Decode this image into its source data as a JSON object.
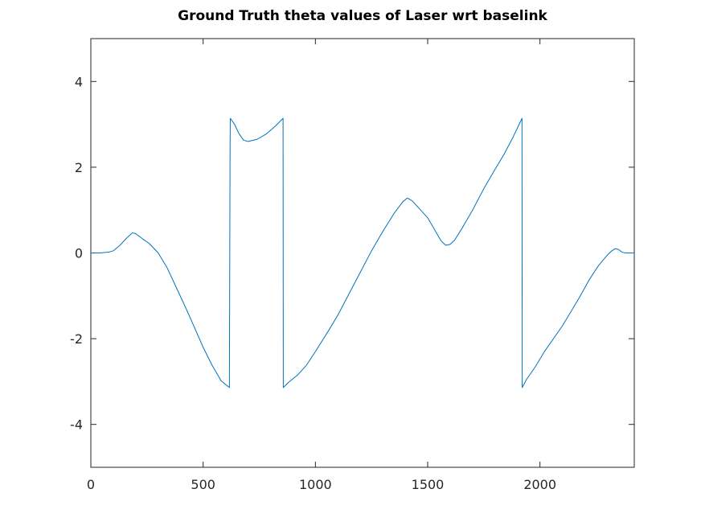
{
  "chart_data": {
    "type": "line",
    "title": "Ground Truth theta values of Laser wrt baselink",
    "xlabel": "",
    "ylabel": "",
    "xlim": [
      0,
      2420
    ],
    "ylim": [
      -5,
      5
    ],
    "x_ticks": [
      0,
      500,
      1000,
      1500,
      2000
    ],
    "y_ticks": [
      -4,
      -2,
      0,
      2,
      4
    ],
    "x_tick_labels": [
      "0",
      "500",
      "1000",
      "1500",
      "2000"
    ],
    "y_tick_labels": [
      "-4",
      "-2",
      "0",
      "2",
      "4"
    ],
    "grid": false,
    "box": true,
    "series": [
      {
        "color": "#0072bd",
        "points": [
          [
            0,
            0.0
          ],
          [
            40,
            0.0
          ],
          [
            80,
            0.02
          ],
          [
            100,
            0.05
          ],
          [
            130,
            0.18
          ],
          [
            160,
            0.35
          ],
          [
            185,
            0.47
          ],
          [
            200,
            0.45
          ],
          [
            230,
            0.33
          ],
          [
            260,
            0.22
          ],
          [
            300,
            0.0
          ],
          [
            340,
            -0.35
          ],
          [
            380,
            -0.8
          ],
          [
            420,
            -1.25
          ],
          [
            460,
            -1.72
          ],
          [
            500,
            -2.2
          ],
          [
            540,
            -2.62
          ],
          [
            580,
            -2.98
          ],
          [
            617,
            -3.14
          ],
          [
            620,
            2.45
          ],
          [
            621,
            3.14
          ],
          [
            640,
            3.0
          ],
          [
            660,
            2.78
          ],
          [
            680,
            2.63
          ],
          [
            700,
            2.6
          ],
          [
            740,
            2.65
          ],
          [
            780,
            2.77
          ],
          [
            820,
            2.95
          ],
          [
            856,
            3.14
          ],
          [
            857,
            -3.14
          ],
          [
            880,
            -3.02
          ],
          [
            920,
            -2.85
          ],
          [
            960,
            -2.62
          ],
          [
            1000,
            -2.3
          ],
          [
            1060,
            -1.8
          ],
          [
            1100,
            -1.45
          ],
          [
            1150,
            -0.95
          ],
          [
            1200,
            -0.45
          ],
          [
            1250,
            0.05
          ],
          [
            1300,
            0.5
          ],
          [
            1350,
            0.92
          ],
          [
            1390,
            1.2
          ],
          [
            1410,
            1.28
          ],
          [
            1430,
            1.22
          ],
          [
            1460,
            1.05
          ],
          [
            1500,
            0.82
          ],
          [
            1530,
            0.55
          ],
          [
            1560,
            0.28
          ],
          [
            1580,
            0.18
          ],
          [
            1600,
            0.2
          ],
          [
            1620,
            0.3
          ],
          [
            1650,
            0.55
          ],
          [
            1700,
            1.0
          ],
          [
            1750,
            1.5
          ],
          [
            1800,
            1.95
          ],
          [
            1840,
            2.3
          ],
          [
            1880,
            2.7
          ],
          [
            1920,
            3.14
          ],
          [
            1921,
            -3.14
          ],
          [
            1940,
            -2.95
          ],
          [
            1980,
            -2.65
          ],
          [
            2020,
            -2.3
          ],
          [
            2060,
            -2.0
          ],
          [
            2100,
            -1.7
          ],
          [
            2140,
            -1.35
          ],
          [
            2180,
            -1.0
          ],
          [
            2220,
            -0.62
          ],
          [
            2260,
            -0.3
          ],
          [
            2300,
            -0.05
          ],
          [
            2320,
            0.05
          ],
          [
            2335,
            0.1
          ],
          [
            2350,
            0.08
          ],
          [
            2365,
            0.02
          ],
          [
            2380,
            0.0
          ],
          [
            2420,
            0.0
          ]
        ]
      }
    ]
  }
}
